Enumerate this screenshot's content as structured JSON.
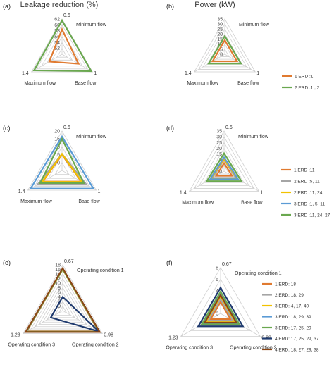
{
  "chart_data": [
    {
      "panel": "(a)",
      "type": "radar",
      "title": "Leakage reduction (%)",
      "axes": [
        "Minimum flow",
        "Base flow",
        "Maximum flow"
      ],
      "axis_values": [
        "0.6",
        "1",
        "1.4"
      ],
      "rlim": [
        50,
        62
      ],
      "ticks": [
        52,
        54,
        56,
        58,
        60,
        62
      ],
      "series": [
        {
          "name": "1 ERD :1",
          "color": "#e07a30",
          "values": [
            58.5,
            56.5,
            55
          ]
        },
        {
          "name": "2 ERD :1 , 2",
          "color": "#6aa84f",
          "values": [
            61.5,
            61.5,
            61
          ]
        }
      ],
      "legend": true
    },
    {
      "panel": "(b)",
      "type": "radar",
      "title": "Power (kW)",
      "axes": [
        "Minimum flow",
        "Base flow",
        "Maximum flow"
      ],
      "axis_values": [
        "",
        "1",
        "1.4"
      ],
      "rlim": [
        0,
        35
      ],
      "ticks": [
        0,
        5,
        10,
        15,
        20,
        25,
        30,
        35
      ],
      "series": [
        {
          "name": "1 ERD :1",
          "color": "#e07a30",
          "values": [
            14,
            14,
            14
          ]
        },
        {
          "name": "2 ERD :1 , 2",
          "color": "#6aa84f",
          "values": [
            18,
            18.5,
            18.5
          ]
        }
      ],
      "legend": true
    },
    {
      "panel": "(c)",
      "type": "radar",
      "title": "",
      "axes": [
        "Minimum flow",
        "Base flow",
        "Maximum flow"
      ],
      "axis_values": [
        "0.6",
        "1",
        "1.4"
      ],
      "rlim": [
        -5,
        20
      ],
      "ticks": [
        0,
        5,
        10,
        15,
        20
      ],
      "series": [
        {
          "name": "1 ERD :11",
          "color": "#e07a30",
          "values": [
            5,
            9,
            9
          ]
        },
        {
          "name": "2 ERD :5, 11",
          "color": "#a5a5a5",
          "values": [
            5.5,
            13,
            13
          ]
        },
        {
          "name": "2 ERD :11, 24",
          "color": "#f2c200",
          "values": [
            5.5,
            9.5,
            9.5
          ]
        },
        {
          "name": "3 ERD :1, 5, 11",
          "color": "#5b9bd5",
          "values": [
            16.5,
            18,
            18
          ]
        },
        {
          "name": "3 ERD :11, 24, 27",
          "color": "#6aa84f",
          "values": [
            15,
            11,
            11
          ]
        }
      ],
      "legend": false
    },
    {
      "panel": "(d)",
      "type": "radar",
      "title": "",
      "axes": [
        "Minimum flow",
        "Base flow",
        "Maximum flow"
      ],
      "axis_values": [
        "0.6",
        "1",
        "1.4"
      ],
      "rlim": [
        0,
        35
      ],
      "ticks": [
        0,
        5,
        10,
        15,
        20,
        25,
        30,
        35
      ],
      "series": [
        {
          "name": "1 ERD :11",
          "color": "#e07a30",
          "values": [
            7,
            8,
            8
          ]
        },
        {
          "name": "2 ERD :5, 11",
          "color": "#a5a5a5",
          "values": [
            10,
            12,
            12
          ]
        },
        {
          "name": "2 ERD :11, 24",
          "color": "#f2c200",
          "values": [
            10.5,
            13.5,
            13.5
          ]
        },
        {
          "name": "3 ERD :1, 5, 11",
          "color": "#5b9bd5",
          "values": [
            12,
            14,
            14
          ]
        },
        {
          "name": "3 ERD :11, 24, 27",
          "color": "#6aa84f",
          "values": [
            15.5,
            17.5,
            17.5
          ]
        }
      ],
      "legend": true
    },
    {
      "panel": "(e)",
      "type": "radar",
      "title": "",
      "axes": [
        "Operating condition 1",
        "Operating condition 2",
        "Operating condition 3"
      ],
      "axis_values": [
        "0.67",
        "0.98",
        "1.23"
      ],
      "rlim": [
        -2,
        18
      ],
      "ticks": [
        0,
        2,
        4,
        6,
        8,
        10,
        12,
        14,
        16,
        18
      ],
      "series": [
        {
          "name": "1 ERD: 18",
          "color": "#e07a30",
          "values": [
            16,
            16,
            16
          ]
        },
        {
          "name": "2 ERD: 18, 29",
          "color": "#a5a5a5",
          "values": [
            16,
            16.2,
            16.2
          ]
        },
        {
          "name": "3 ERD: 4, 17, 40",
          "color": "#f2c200",
          "values": [
            16,
            16.3,
            16.3
          ]
        },
        {
          "name": "3 ERD: 18, 29, 39",
          "color": "#5b9bd5",
          "values": [
            16.2,
            16.4,
            16.4
          ]
        },
        {
          "name": "3 ERD: 17, 25, 29",
          "color": "#6aa84f",
          "values": [
            16.2,
            16.5,
            16.5
          ]
        },
        {
          "name": "4 ERD: 17, 25, 29, 37",
          "color": "#1f3a6e",
          "values": [
            4,
            16.2,
            4
          ]
        },
        {
          "name": "4 ERD: 18, 27, 29, 38",
          "color": "#8b4513",
          "values": [
            16.5,
            16.7,
            16.7
          ]
        }
      ],
      "legend": false
    },
    {
      "panel": "(f)",
      "type": "radar",
      "title": "",
      "axes": [
        "Operating condition 1",
        "Operating condition 2",
        "Operating condition 3"
      ],
      "axis_values": [
        "0.67",
        "0.98",
        "1.23"
      ],
      "rlim": [
        0,
        8
      ],
      "ticks": [
        0,
        2,
        4,
        6,
        8
      ],
      "series": [
        {
          "name": "1 ERD: 18",
          "color": "#e07a30",
          "values": [
            2,
            2,
            2
          ]
        },
        {
          "name": "2 ERD: 18, 29",
          "color": "#a5a5a5",
          "values": [
            2.5,
            2.5,
            2.5
          ]
        },
        {
          "name": "3 ERD: 4, 17, 40",
          "color": "#f2c200",
          "values": [
            3,
            3,
            3
          ]
        },
        {
          "name": "3 ERD: 18, 29, 39",
          "color": "#5b9bd5",
          "values": [
            3.5,
            3.5,
            3.5
          ]
        },
        {
          "name": "3 ERD: 17, 25, 29",
          "color": "#6aa84f",
          "values": [
            3.8,
            3.8,
            3.8
          ]
        },
        {
          "name": "4 ERD: 17, 25, 29, 37",
          "color": "#1f3a6e",
          "values": [
            4.5,
            4.5,
            4.5
          ]
        },
        {
          "name": "4 ERD: 18, 27, 29, 38",
          "color": "#8b4513",
          "values": [
            3.2,
            3.2,
            3.2
          ]
        }
      ],
      "legend": true
    }
  ]
}
